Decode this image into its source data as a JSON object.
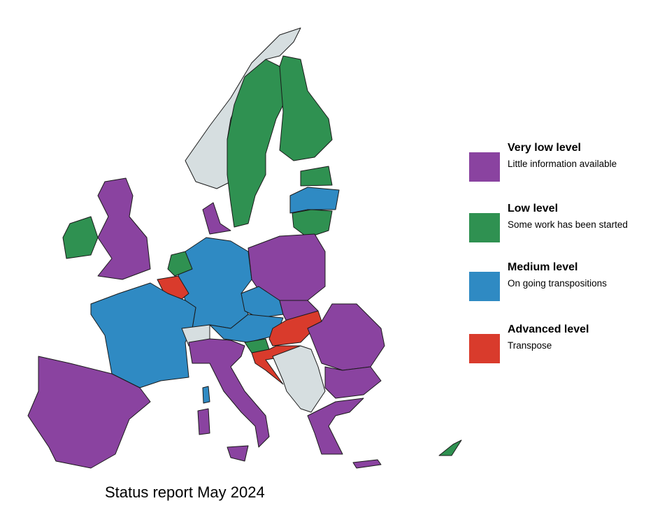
{
  "legend": {
    "items": [
      {
        "title": "Very low level",
        "description": "Little information available",
        "color": "#8a43a0"
      },
      {
        "title": "Low level",
        "description": "Some work has been started",
        "color": "#2f9151"
      },
      {
        "title": "Medium level",
        "description": "On going transpositions",
        "color": "#2f8ac3"
      },
      {
        "title": "Advanced level",
        "description": "Transpose",
        "color": "#d93b2c"
      }
    ]
  },
  "caption": "Status report May 2024"
}
